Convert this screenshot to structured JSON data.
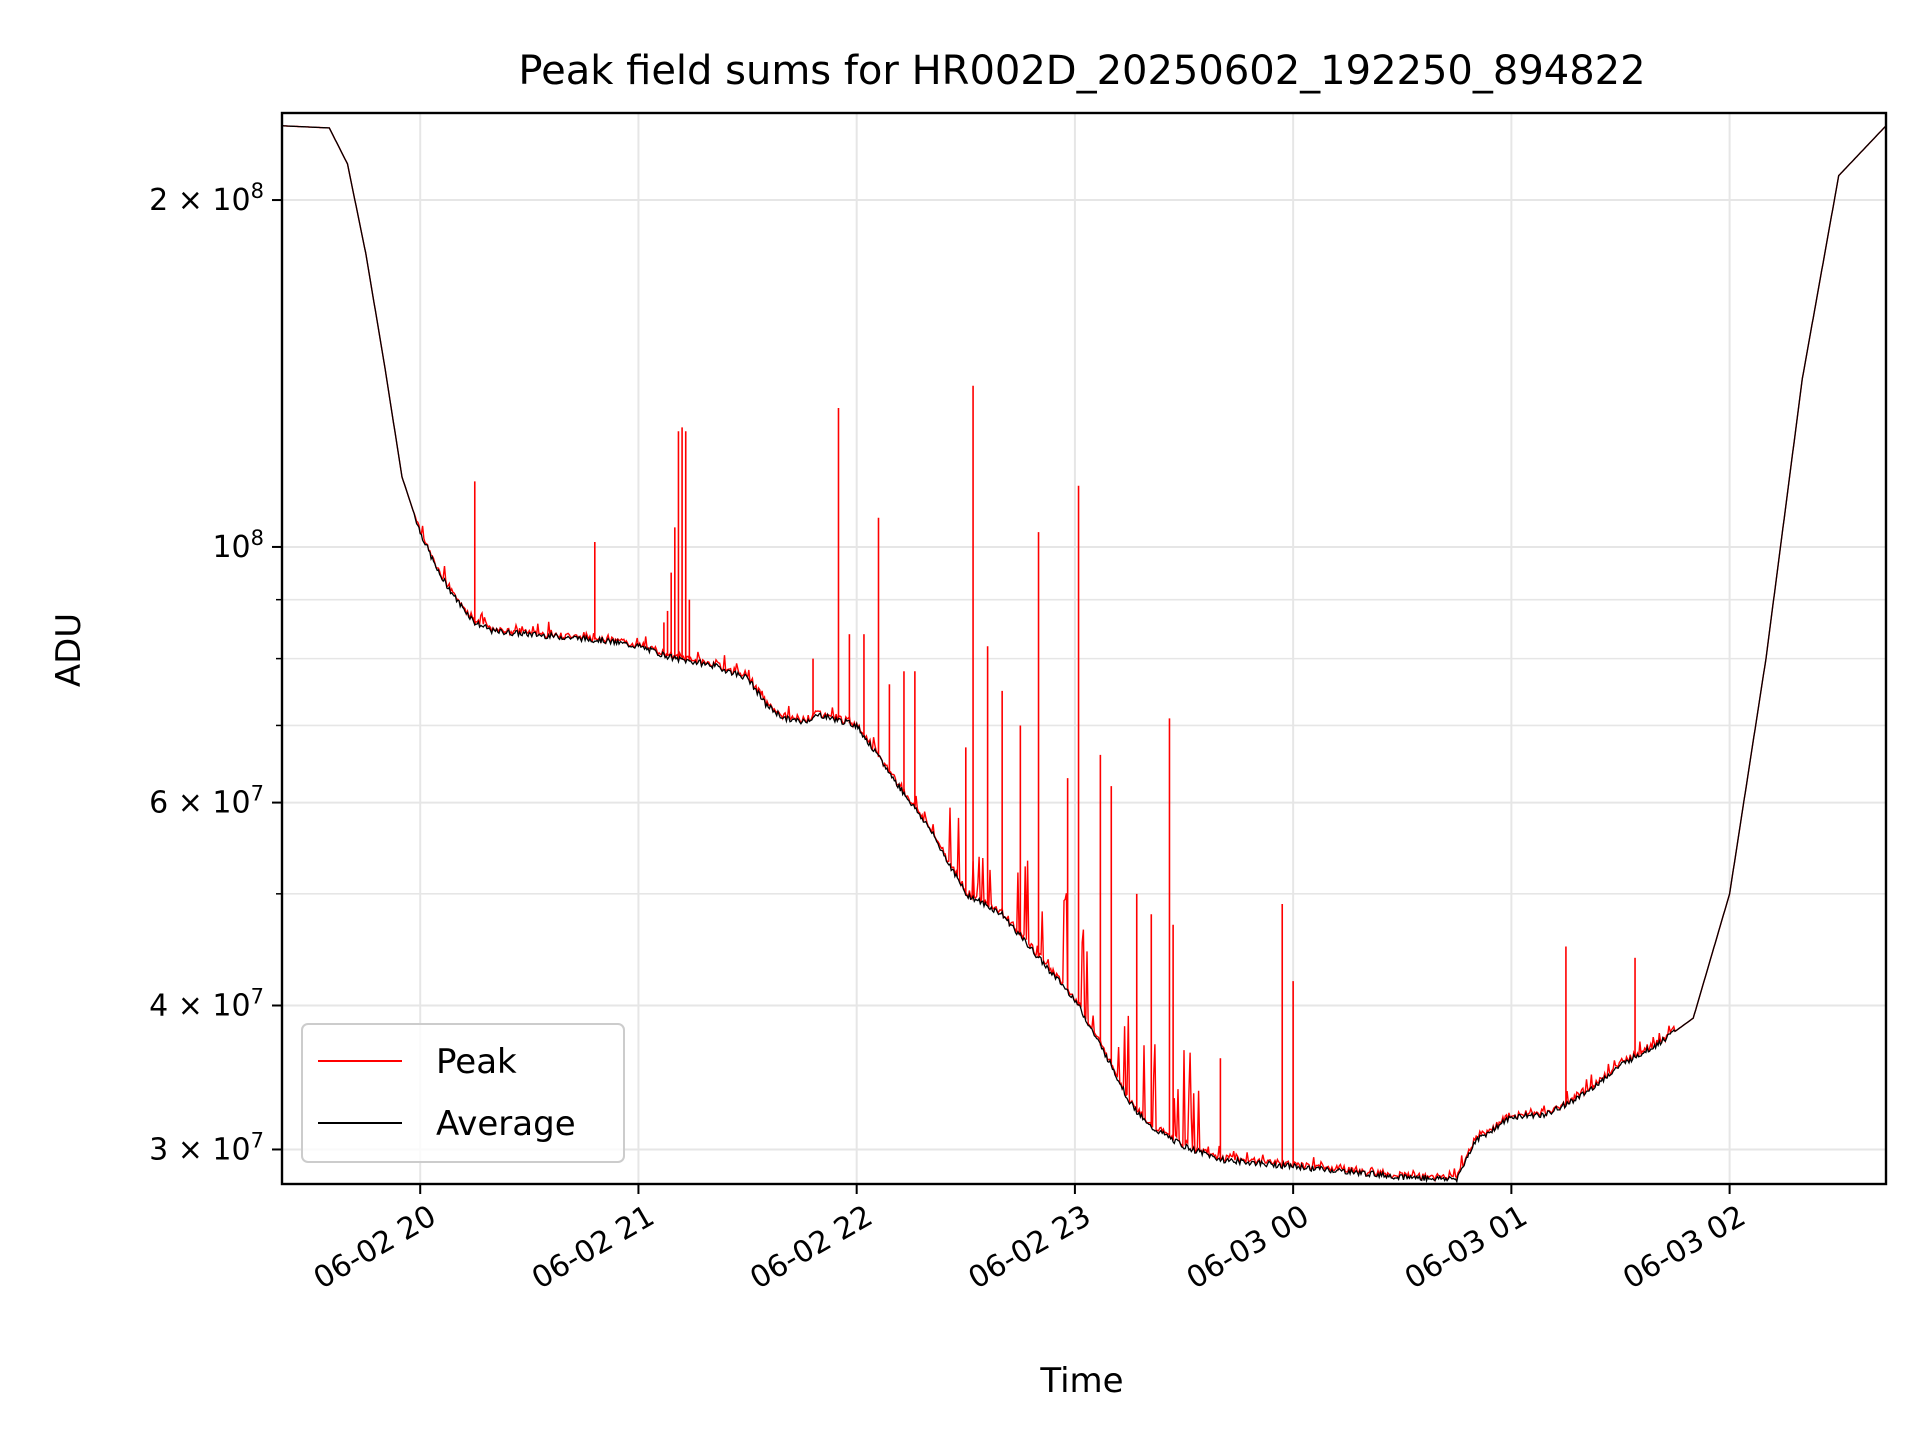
{
  "chart_data": {
    "type": "line",
    "title": "Peak field sums for HR002D_20250602_192250_894822",
    "xlabel": "Time",
    "ylabel": "ADU",
    "yscale": "log",
    "xlim": [
      "2025-06-02 19:22",
      "2025-06-03 02:43"
    ],
    "ylim": [
      28000000,
      238000000
    ],
    "x_ticks": [
      "06-02 20",
      "06-02 21",
      "06-02 22",
      "06-02 23",
      "06-03 00",
      "06-03 01",
      "06-03 02"
    ],
    "y_tick_labels": [
      {
        "value": 200000000,
        "label": "2 × 10^8"
      },
      {
        "value": 100000000,
        "label": "10^8"
      },
      {
        "value": 60000000,
        "label": "6 × 10^7"
      },
      {
        "value": 40000000,
        "label": "4 × 10^7"
      },
      {
        "value": 30000000,
        "label": "3 × 10^7"
      }
    ],
    "grid": true,
    "legend_position": "lower-left",
    "colors": {
      "peak": "#ff0000",
      "average": "#000000",
      "grid": "#e6e6e6"
    },
    "series": [
      {
        "name": "Average",
        "x": [
          "2025-06-02 19:22",
          "2025-06-02 19:35",
          "2025-06-02 19:40",
          "2025-06-02 19:45",
          "2025-06-02 19:50",
          "2025-06-02 19:55",
          "2025-06-02 20:00",
          "2025-06-02 20:05",
          "2025-06-02 20:10",
          "2025-06-02 20:15",
          "2025-06-02 20:20",
          "2025-06-02 20:30",
          "2025-06-02 20:40",
          "2025-06-02 20:50",
          "2025-06-02 21:00",
          "2025-06-02 21:10",
          "2025-06-02 21:20",
          "2025-06-02 21:30",
          "2025-06-02 21:35",
          "2025-06-02 21:40",
          "2025-06-02 21:45",
          "2025-06-02 21:50",
          "2025-06-02 22:00",
          "2025-06-02 22:10",
          "2025-06-02 22:20",
          "2025-06-02 22:30",
          "2025-06-02 22:40",
          "2025-06-02 22:50",
          "2025-06-02 23:00",
          "2025-06-02 23:10",
          "2025-06-02 23:15",
          "2025-06-02 23:20",
          "2025-06-02 23:30",
          "2025-06-02 23:40",
          "2025-06-02 23:50",
          "2025-06-03 00:00",
          "2025-06-03 00:10",
          "2025-06-03 00:20",
          "2025-06-03 00:30",
          "2025-06-03 00:40",
          "2025-06-03 00:45",
          "2025-06-03 00:50",
          "2025-06-03 01:00",
          "2025-06-03 01:10",
          "2025-06-03 01:20",
          "2025-06-03 01:30",
          "2025-06-03 01:40",
          "2025-06-03 01:50",
          "2025-06-03 02:00",
          "2025-06-03 02:10",
          "2025-06-03 02:20",
          "2025-06-03 02:30",
          "2025-06-03 02:43"
        ],
        "values": [
          232000000,
          231000000,
          215000000,
          180000000,
          145000000,
          115000000,
          103000000,
          95000000,
          90000000,
          86000000,
          84500000,
          84000000,
          83500000,
          83000000,
          82000000,
          80000000,
          79000000,
          77000000,
          73000000,
          71000000,
          70500000,
          71500000,
          70000000,
          63000000,
          57000000,
          50000000,
          48000000,
          44000000,
          40500000,
          35500000,
          33000000,
          31500000,
          30200000,
          29400000,
          29200000,
          29000000,
          28800000,
          28600000,
          28400000,
          28300000,
          28300000,
          30500000,
          32000000,
          32200000,
          33500000,
          35500000,
          37000000,
          39000000,
          50000000,
          80000000,
          140000000,
          210000000,
          232000000
        ]
      },
      {
        "name": "Peak",
        "note_spikes": true,
        "x": [
          "2025-06-02 20:15",
          "2025-06-02 20:48",
          "2025-06-02 21:07",
          "2025-06-02 21:08",
          "2025-06-02 21:09",
          "2025-06-02 21:10",
          "2025-06-02 21:11",
          "2025-06-02 21:12",
          "2025-06-02 21:13",
          "2025-06-02 21:14",
          "2025-06-02 21:48",
          "2025-06-02 21:55",
          "2025-06-02 21:58",
          "2025-06-02 22:02",
          "2025-06-02 22:06",
          "2025-06-02 22:09",
          "2025-06-02 22:13",
          "2025-06-02 22:16",
          "2025-06-02 22:30",
          "2025-06-02 22:32",
          "2025-06-02 22:36",
          "2025-06-02 22:40",
          "2025-06-02 22:45",
          "2025-06-02 22:50",
          "2025-06-02 22:58",
          "2025-06-02 23:01",
          "2025-06-02 23:07",
          "2025-06-02 23:10",
          "2025-06-02 23:17",
          "2025-06-02 23:21",
          "2025-06-02 23:26",
          "2025-06-02 23:27",
          "2025-06-02 23:40",
          "2025-06-02 23:57",
          "2025-06-03 00:00",
          "2025-06-03 01:15",
          "2025-06-03 01:34"
        ],
        "values": [
          114000000,
          101000000,
          86000000,
          88000000,
          95000000,
          104000000,
          126000000,
          127000000,
          126000000,
          90000000,
          80000000,
          132000000,
          84000000,
          84000000,
          106000000,
          76000000,
          78000000,
          78000000,
          67000000,
          138000000,
          82000000,
          75000000,
          70000000,
          103000000,
          63000000,
          113000000,
          66000000,
          62000000,
          50000000,
          48000000,
          71000000,
          47000000,
          36000000,
          49000000,
          42000000,
          45000000,
          44000000
        ]
      }
    ]
  }
}
